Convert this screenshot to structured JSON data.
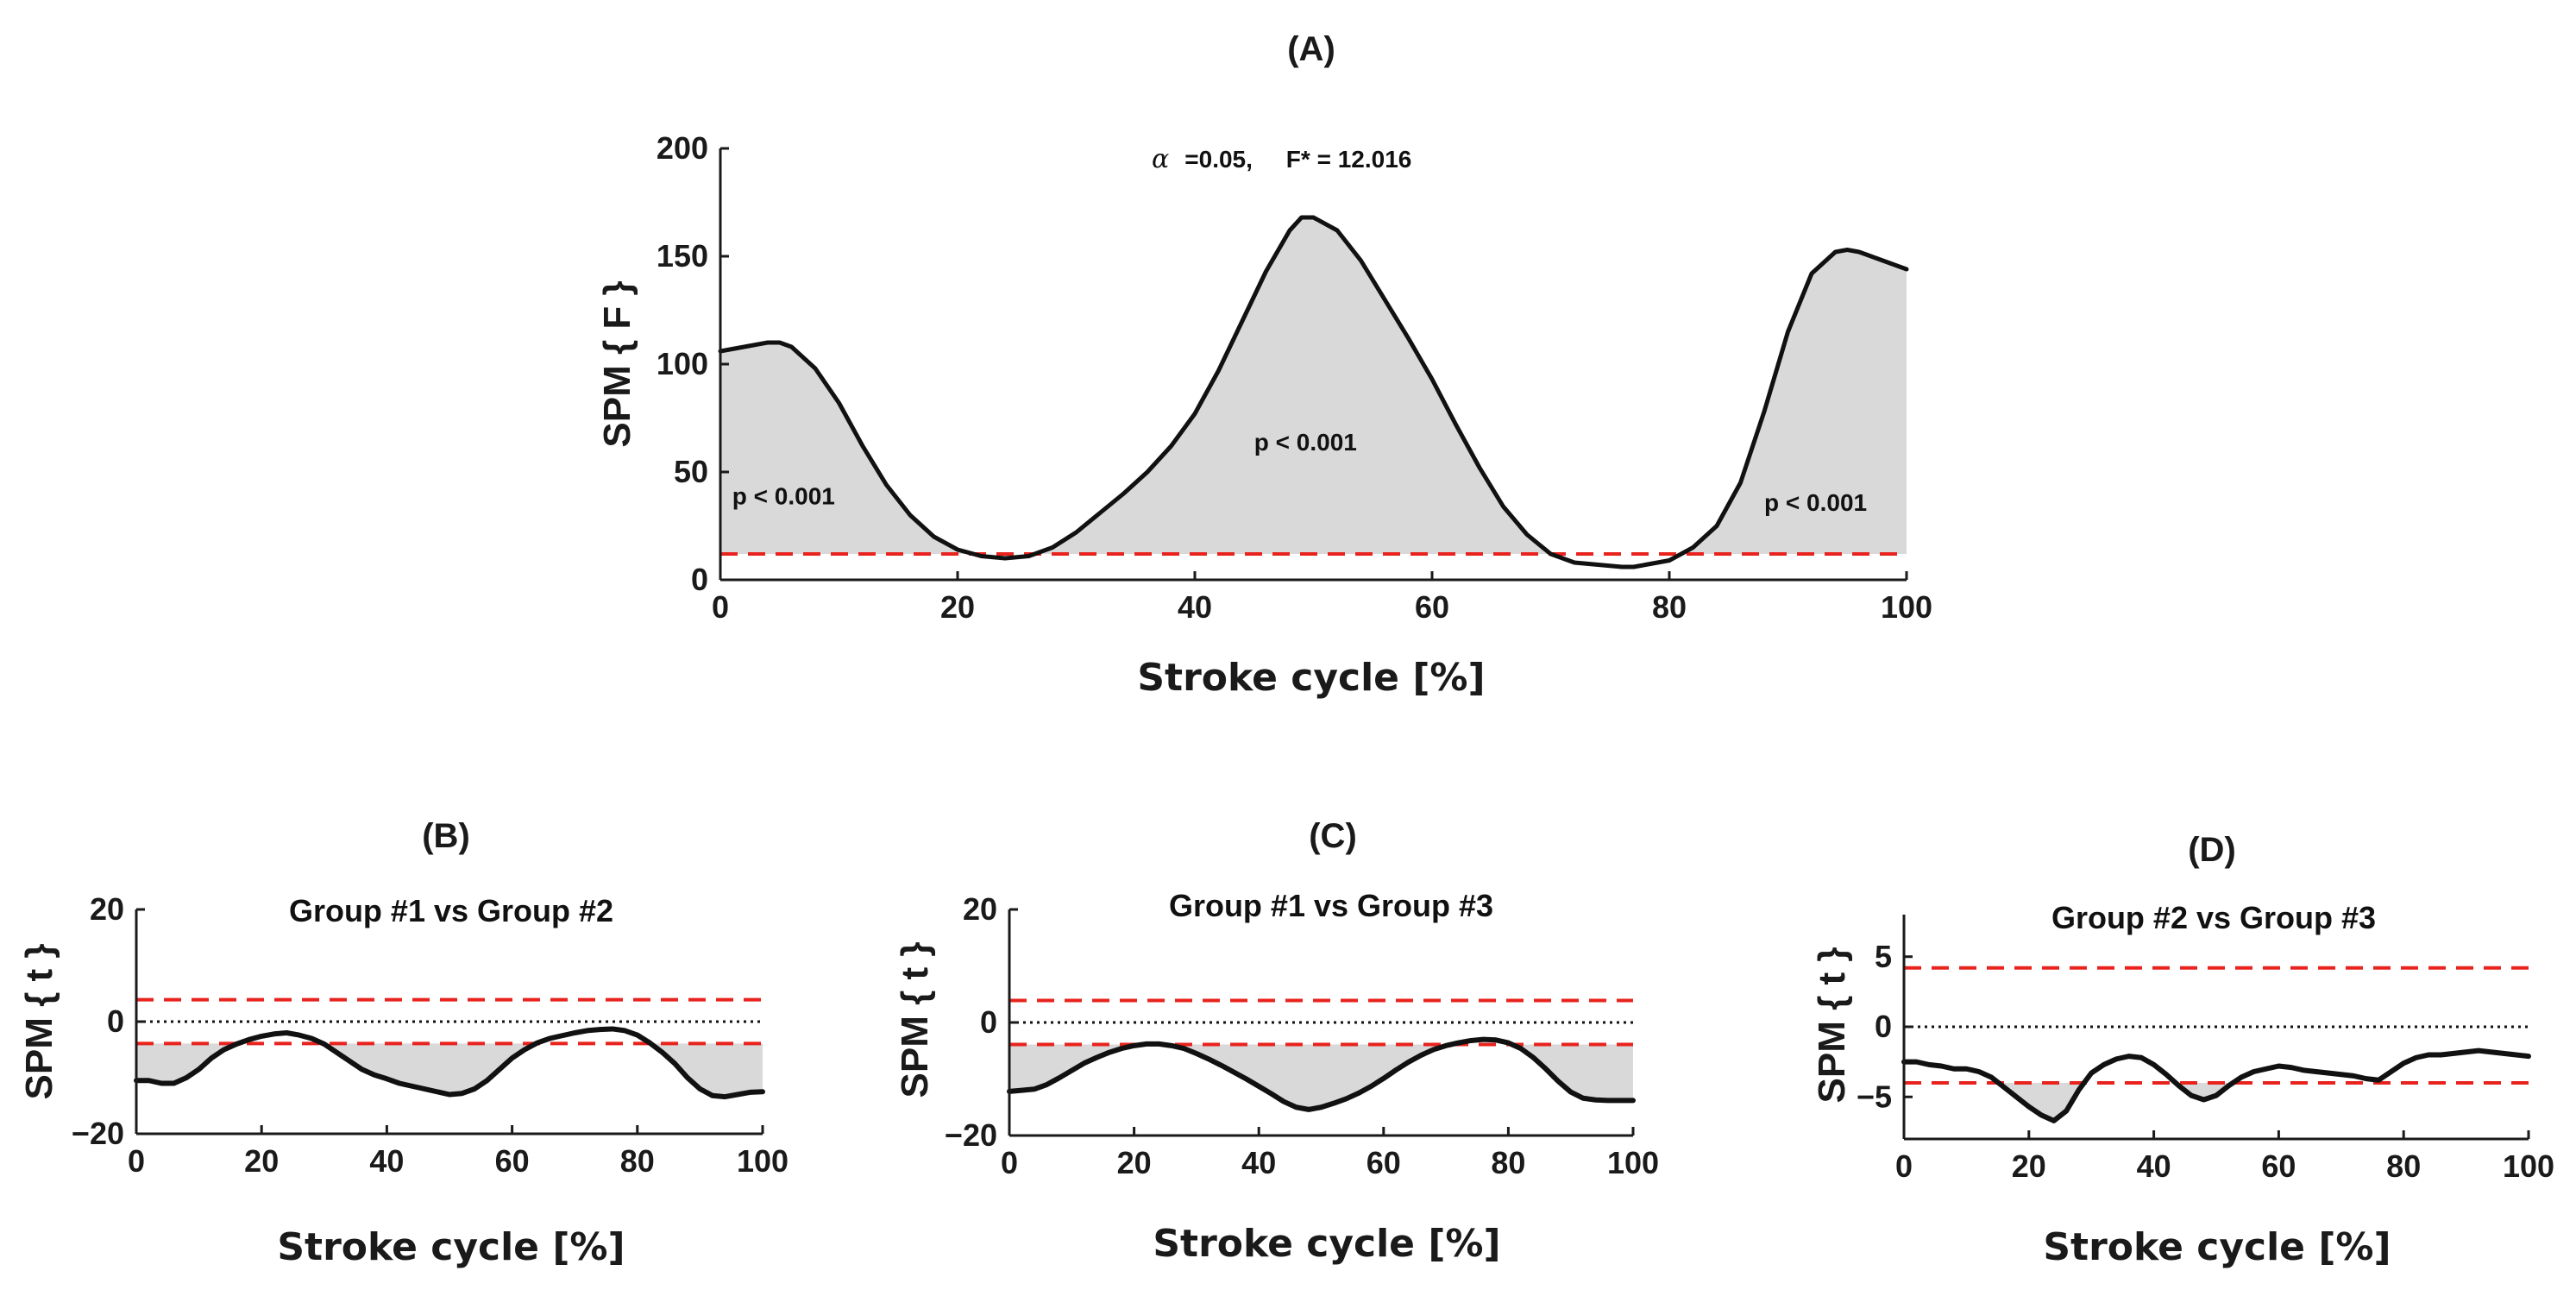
{
  "chart_data": [
    {
      "id": "A",
      "type": "line",
      "label": "(A)",
      "title": "",
      "annotation_alpha": "α",
      "annotation_rest": "=0.05,     F* = 12.016",
      "xlabel": "Stroke cycle [%]",
      "ylabel": "SPM { F }",
      "xlim": [
        0,
        100
      ],
      "ylim": [
        0,
        200
      ],
      "xticks": [
        0,
        20,
        40,
        60,
        80,
        100
      ],
      "yticks": [
        0,
        50,
        100,
        150,
        200
      ],
      "thresholds": [
        12.016
      ],
      "zero_line": false,
      "p_labels": [
        {
          "text": "p < 0.001",
          "x": 1,
          "y": 35
        },
        {
          "text": "p < 0.001",
          "x": 45,
          "y": 60
        },
        {
          "text": "p < 0.001",
          "x": 88,
          "y": 32
        }
      ],
      "x": [
        0,
        2,
        4,
        5,
        6,
        8,
        10,
        12,
        14,
        16,
        18,
        20,
        22,
        24,
        26,
        28,
        30,
        32,
        34,
        36,
        38,
        40,
        42,
        44,
        46,
        48,
        49,
        50,
        52,
        54,
        56,
        58,
        60,
        62,
        64,
        66,
        68,
        70,
        72,
        74,
        76,
        77,
        78,
        80,
        82,
        84,
        86,
        88,
        90,
        92,
        94,
        95,
        96,
        98,
        100
      ],
      "values": [
        106,
        108,
        110,
        110,
        108,
        98,
        82,
        62,
        44,
        30,
        20,
        14,
        11,
        10,
        11,
        15,
        22,
        31,
        40,
        50,
        62,
        77,
        97,
        120,
        143,
        162,
        168,
        168,
        162,
        148,
        130,
        112,
        93,
        72,
        52,
        34,
        21,
        12,
        8,
        7,
        6,
        6,
        7,
        9,
        15,
        25,
        45,
        78,
        115,
        142,
        152,
        153,
        152,
        148,
        144
      ]
    },
    {
      "id": "B",
      "type": "line",
      "label": "(B)",
      "title": "Group #1 vs Group #2",
      "xlabel": "Stroke cycle [%]",
      "ylabel": "SPM { t }",
      "xlim": [
        0,
        100
      ],
      "ylim": [
        -20,
        20
      ],
      "xticks": [
        0,
        20,
        40,
        60,
        80,
        100
      ],
      "yticks": [
        -20,
        0,
        20
      ],
      "thresholds": [
        3.9,
        -3.9
      ],
      "zero_line": true,
      "x": [
        0,
        2,
        4,
        6,
        8,
        10,
        12,
        14,
        16,
        18,
        20,
        22,
        24,
        26,
        28,
        30,
        32,
        34,
        36,
        38,
        40,
        42,
        44,
        46,
        48,
        50,
        52,
        54,
        56,
        58,
        60,
        62,
        64,
        66,
        68,
        70,
        72,
        74,
        76,
        78,
        80,
        82,
        84,
        86,
        88,
        90,
        92,
        94,
        96,
        98,
        100
      ],
      "values": [
        -10.5,
        -10.5,
        -11,
        -11,
        -10,
        -8.5,
        -6.5,
        -5,
        -4,
        -3.2,
        -2.6,
        -2.2,
        -2,
        -2.4,
        -3,
        -4,
        -5.5,
        -7,
        -8.5,
        -9.5,
        -10.2,
        -11,
        -11.5,
        -12,
        -12.5,
        -13,
        -12.8,
        -12,
        -10.5,
        -8.5,
        -6.5,
        -5,
        -3.8,
        -3,
        -2.5,
        -2,
        -1.6,
        -1.4,
        -1.3,
        -1.6,
        -2.4,
        -3.8,
        -5.5,
        -7.5,
        -10,
        -12,
        -13.2,
        -13.4,
        -13,
        -12.6,
        -12.5
      ]
    },
    {
      "id": "C",
      "type": "line",
      "label": "(C)",
      "title": "Group #1 vs Group #3",
      "xlabel": "Stroke cycle [%]",
      "ylabel": "SPM { t }",
      "xlim": [
        0,
        100
      ],
      "ylim": [
        -20,
        20
      ],
      "xticks": [
        0,
        20,
        40,
        60,
        80,
        100
      ],
      "yticks": [
        -20,
        0,
        20
      ],
      "thresholds": [
        3.9,
        -3.9
      ],
      "zero_line": true,
      "x": [
        0,
        2,
        4,
        6,
        8,
        10,
        12,
        14,
        16,
        18,
        20,
        22,
        24,
        26,
        28,
        30,
        32,
        34,
        36,
        38,
        40,
        42,
        44,
        46,
        48,
        50,
        52,
        54,
        56,
        58,
        60,
        62,
        64,
        66,
        68,
        70,
        72,
        74,
        76,
        78,
        80,
        82,
        84,
        86,
        88,
        90,
        92,
        94,
        96,
        98,
        100
      ],
      "values": [
        -12.2,
        -12,
        -11.8,
        -11,
        -9.8,
        -8.5,
        -7.2,
        -6.2,
        -5.3,
        -4.6,
        -4.1,
        -3.8,
        -3.8,
        -4.1,
        -4.6,
        -5.5,
        -6.5,
        -7.6,
        -8.8,
        -10,
        -11.3,
        -12.6,
        -14,
        -15,
        -15.4,
        -15,
        -14.3,
        -13.5,
        -12.5,
        -11.3,
        -9.9,
        -8.4,
        -7,
        -5.8,
        -4.8,
        -4.1,
        -3.6,
        -3.2,
        -3,
        -3.1,
        -3.6,
        -4.6,
        -6.2,
        -8.2,
        -10.4,
        -12.3,
        -13.4,
        -13.7,
        -13.8,
        -13.8,
        -13.8
      ]
    },
    {
      "id": "D",
      "type": "line",
      "label": "(D)",
      "title": "Group #2 vs Group #3",
      "xlabel": "Stroke cycle [%]",
      "ylabel": "SPM { t }",
      "xlim": [
        0,
        100
      ],
      "ylim": [
        -8,
        8
      ],
      "xticks": [
        0,
        20,
        40,
        60,
        80,
        100
      ],
      "yticks": [
        -5,
        0,
        5
      ],
      "thresholds": [
        4.2,
        -4.0
      ],
      "zero_line": true,
      "x": [
        0,
        2,
        4,
        6,
        8,
        10,
        12,
        14,
        16,
        18,
        20,
        22,
        24,
        26,
        28,
        30,
        32,
        34,
        36,
        38,
        40,
        42,
        44,
        46,
        48,
        50,
        52,
        54,
        56,
        58,
        60,
        62,
        64,
        66,
        68,
        70,
        72,
        74,
        76,
        78,
        80,
        82,
        84,
        86,
        88,
        90,
        92,
        94,
        96,
        98,
        100
      ],
      "values": [
        -2.5,
        -2.5,
        -2.7,
        -2.8,
        -3,
        -3,
        -3.2,
        -3.6,
        -4.3,
        -5,
        -5.7,
        -6.3,
        -6.7,
        -6,
        -4.5,
        -3.3,
        -2.7,
        -2.3,
        -2.1,
        -2.2,
        -2.7,
        -3.4,
        -4.2,
        -4.9,
        -5.2,
        -4.9,
        -4.2,
        -3.6,
        -3.2,
        -3,
        -2.8,
        -2.9,
        -3.1,
        -3.2,
        -3.3,
        -3.4,
        -3.5,
        -3.7,
        -3.8,
        -3.2,
        -2.6,
        -2.2,
        -2,
        -2,
        -1.9,
        -1.8,
        -1.7,
        -1.8,
        -1.9,
        -2,
        -2.1
      ]
    }
  ]
}
